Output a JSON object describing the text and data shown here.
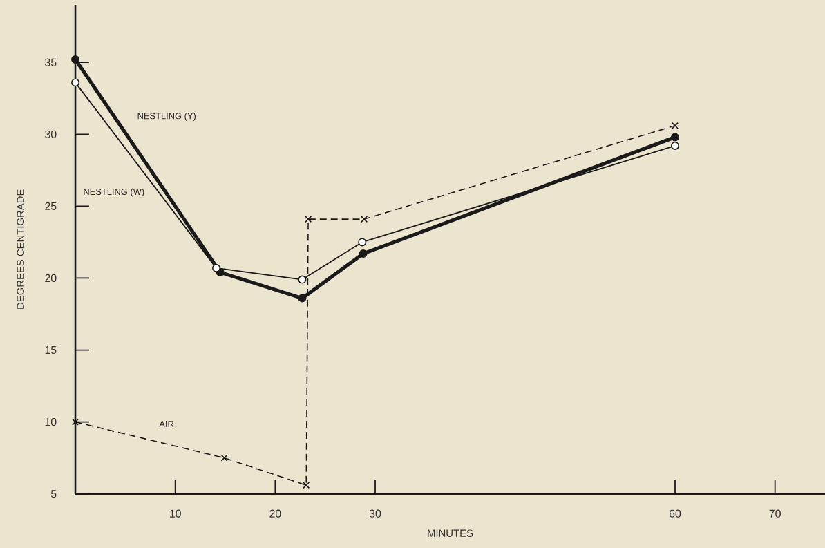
{
  "chart_data": {
    "type": "line",
    "xlabel": "MINUTES",
    "ylabel": "DEGREES CENTIGRADE",
    "xlim": [
      0,
      75
    ],
    "ylim": [
      5,
      39
    ],
    "xticks": [
      10,
      20,
      30,
      60,
      70
    ],
    "yticks": [
      5,
      10,
      15,
      20,
      25,
      30,
      35
    ],
    "grid": false,
    "legend": false,
    "series": [
      {
        "name": "NESTLING (Y)",
        "color": "#1a1a1a",
        "marker": "circle",
        "line_style": "solid",
        "x": [
          0,
          14.5,
          22.7,
          28.8,
          60
        ],
        "values": [
          35.2,
          20.4,
          18.6,
          21.7,
          29.8
        ]
      },
      {
        "name": "NESTLING (W)",
        "color": "#1a1a1a",
        "marker": "circle",
        "line_style": "solid",
        "x": [
          0,
          14.1,
          22.7,
          28.7,
          60
        ],
        "values": [
          33.6,
          20.7,
          19.9,
          22.5,
          29.2
        ]
      },
      {
        "name": "AIR",
        "color": "#1a1a1a",
        "marker": "cross",
        "line_style": "dashed",
        "x": [
          0,
          14.9,
          23.1,
          23.3,
          28.9,
          60
        ],
        "values": [
          10.0,
          7.5,
          5.6,
          24.1,
          24.1,
          30.6
        ]
      }
    ]
  }
}
